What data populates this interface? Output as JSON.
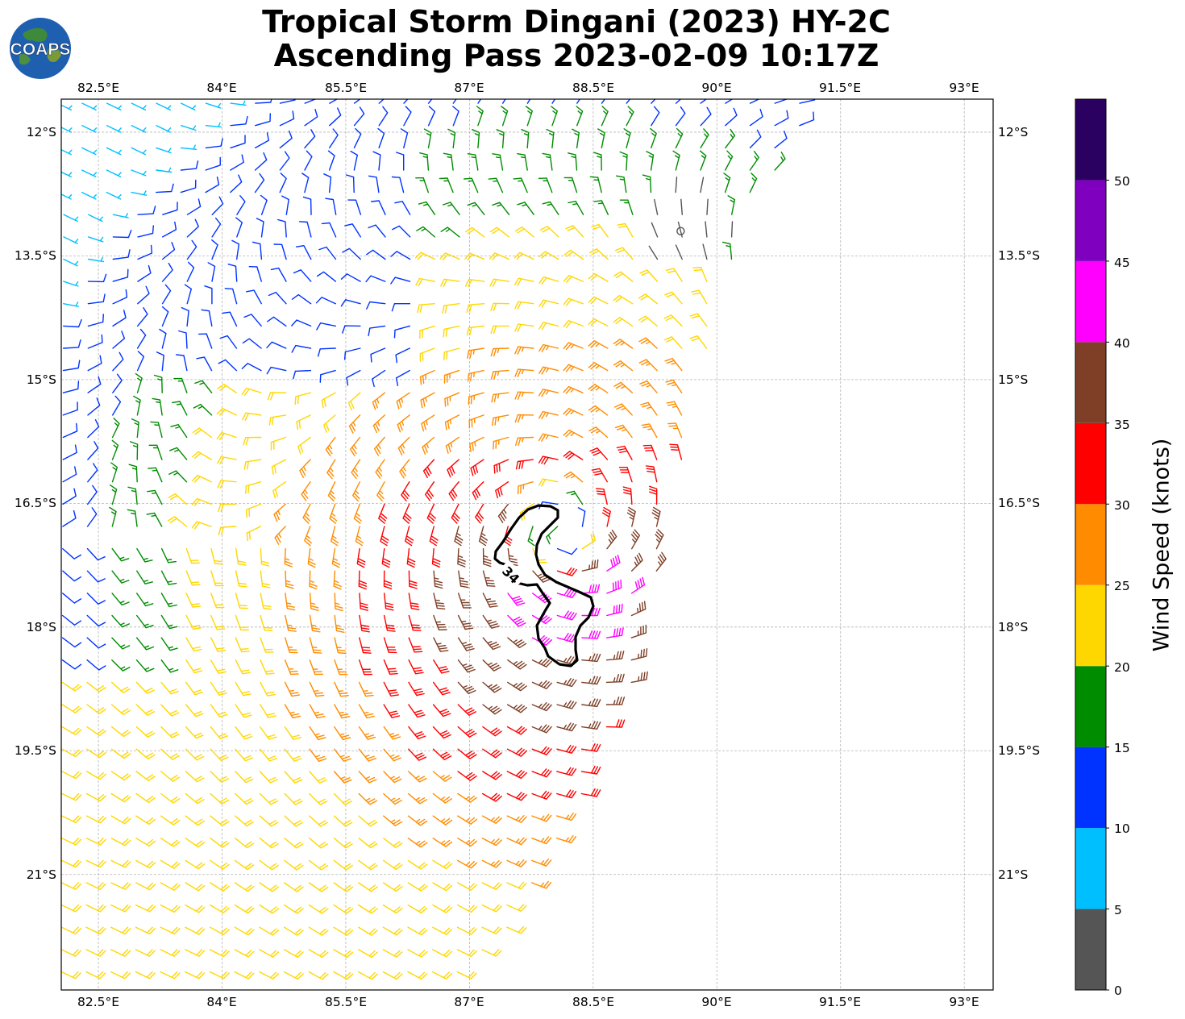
{
  "title": {
    "line1": "Tropical Storm Dingani (2023) HY-2C",
    "line2": "Ascending Pass 2023-02-09 10:17Z"
  },
  "logo": {
    "text": "COAPS",
    "icon": "globe-logo-icon"
  },
  "map": {
    "lon_ticks": [
      "82.5°E",
      "84°E",
      "85.5°E",
      "87°E",
      "88.5°E",
      "90°E",
      "91.5°E",
      "93°E"
    ],
    "lat_ticks": [
      "12°S",
      "13.5°S",
      "15°S",
      "16.5°S",
      "18°S",
      "19.5°S",
      "21°S"
    ],
    "lon_range": [
      82.05,
      93.35
    ],
    "lat_range": [
      11.6,
      22.4
    ],
    "gridlines": true,
    "storm_center": {
      "lon": 88.1,
      "lat": 16.8
    },
    "low_wind_center": {
      "lon": 89.6,
      "lat": 13.2
    },
    "contour_label": "34",
    "contour_color": "#000000",
    "swath_edge_lon_at_lat": [
      [
        11.6,
        91.2
      ],
      [
        13.0,
        90.4
      ],
      [
        14.5,
        89.9
      ],
      [
        16.0,
        89.6
      ],
      [
        17.0,
        89.4
      ],
      [
        18.0,
        89.1
      ],
      [
        19.0,
        88.9
      ],
      [
        20.0,
        88.4
      ],
      [
        21.0,
        87.9
      ],
      [
        22.4,
        87.0
      ]
    ]
  },
  "colorbar": {
    "label": "Wind Speed (knots)",
    "ticks": [
      "0",
      "5",
      "10",
      "15",
      "20",
      "25",
      "30",
      "35",
      "40",
      "45",
      "50"
    ],
    "bins": [
      {
        "range": "0-5",
        "color": "#555555"
      },
      {
        "range": "5-10",
        "color": "#00bfff"
      },
      {
        "range": "10-15",
        "color": "#0033ff"
      },
      {
        "range": "15-20",
        "color": "#008c00"
      },
      {
        "range": "20-25",
        "color": "#ffd700"
      },
      {
        "range": "25-30",
        "color": "#ff8c00"
      },
      {
        "range": "30-35",
        "color": "#ff0000"
      },
      {
        "range": "35-40",
        "color": "#7f3f26"
      },
      {
        "range": "40-45",
        "color": "#ff00ff"
      },
      {
        "range": "45-50",
        "color": "#8000c0"
      },
      {
        "range": "50+",
        "color": "#2a0060"
      }
    ]
  }
}
